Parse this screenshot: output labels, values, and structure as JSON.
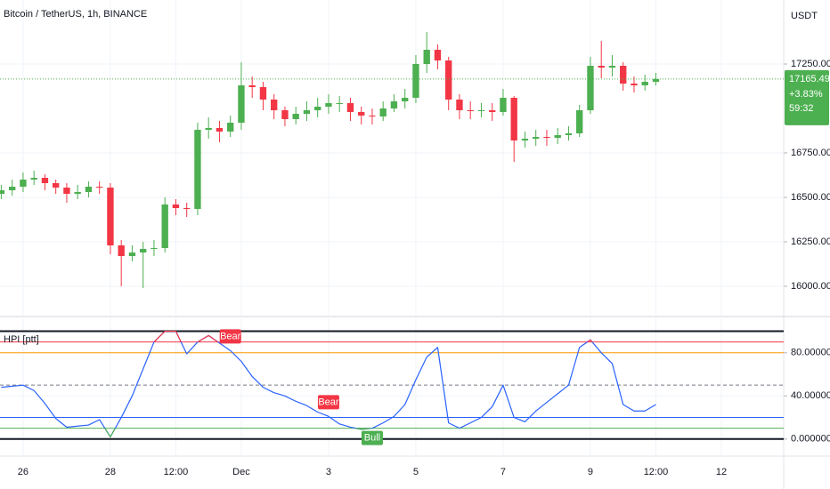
{
  "chart_data": [
    {
      "type": "candlestick",
      "title": "Bitcoin / TetherUS, 1h, BINANCE",
      "unit": "USDT",
      "x": [
        -12,
        -6,
        0,
        6,
        12,
        18,
        24,
        30,
        36,
        42,
        48,
        54,
        60,
        66,
        72,
        78,
        84,
        90,
        96,
        102,
        108,
        114,
        120,
        126,
        132,
        138,
        144,
        150,
        156,
        162,
        168,
        174,
        180,
        186,
        192,
        198,
        204,
        210,
        216,
        222,
        228,
        234,
        240,
        246,
        252,
        258,
        264,
        270,
        276,
        282,
        288,
        294,
        300,
        306,
        312,
        318,
        324,
        330,
        336,
        342,
        348
      ],
      "open": [
        16520,
        16540,
        16560,
        16600,
        16610,
        16580,
        16555,
        16520,
        16530,
        16560,
        16555,
        16230,
        16170,
        16190,
        16210,
        16215,
        16460,
        16440,
        16435,
        16880,
        16890,
        16870,
        16920,
        17130,
        17120,
        17050,
        16990,
        16940,
        16970,
        16990,
        17010,
        17030,
        17030,
        16980,
        16960,
        16955,
        17000,
        17040,
        17060,
        17250,
        17330,
        17270,
        17050,
        16990,
        16985,
        16990,
        16980,
        17060,
        16820,
        16830,
        16840,
        16835,
        16850,
        16860,
        16990,
        17240,
        17230,
        17240,
        17140,
        17130,
        17150
      ],
      "high": [
        16570,
        16600,
        16640,
        16650,
        16630,
        16600,
        16580,
        16570,
        16590,
        16590,
        16580,
        16260,
        16230,
        16250,
        16260,
        16500,
        16490,
        16470,
        16920,
        16950,
        16930,
        16960,
        17260,
        17180,
        17150,
        17080,
        17010,
        17010,
        17040,
        17060,
        17080,
        17070,
        17060,
        17010,
        17000,
        17040,
        17080,
        17110,
        17300,
        17430,
        17360,
        17290,
        17080,
        17040,
        17030,
        17030,
        17110,
        17070,
        16870,
        16880,
        16880,
        16890,
        16900,
        17020,
        17290,
        17380,
        17300,
        17260,
        17180,
        17190,
        17200
      ],
      "low": [
        16490,
        16510,
        16530,
        16570,
        16540,
        16520,
        16470,
        16490,
        16500,
        16520,
        16180,
        16000,
        16140,
        15990,
        16170,
        16190,
        16400,
        16390,
        16400,
        16830,
        16810,
        16840,
        16880,
        17060,
        16990,
        16940,
        16900,
        16910,
        16930,
        16950,
        16970,
        16980,
        16930,
        16910,
        16910,
        16930,
        16980,
        17000,
        17030,
        17200,
        17220,
        16990,
        16940,
        16940,
        16950,
        16930,
        16960,
        16700,
        16780,
        16790,
        16790,
        16800,
        16820,
        16840,
        16970,
        17170,
        17180,
        17100,
        17090,
        17100,
        17130
      ],
      "close": [
        16540,
        16560,
        16600,
        16610,
        16580,
        16555,
        16520,
        16530,
        16560,
        16555,
        16230,
        16170,
        16190,
        16210,
        16215,
        16460,
        16440,
        16435,
        16880,
        16890,
        16870,
        16920,
        17130,
        17120,
        17050,
        16990,
        16940,
        16970,
        16990,
        17010,
        17030,
        17030,
        16980,
        16960,
        16955,
        17000,
        17040,
        17060,
        17250,
        17330,
        17270,
        17050,
        16990,
        16985,
        16990,
        16980,
        17060,
        16820,
        16830,
        16840,
        16835,
        16850,
        16860,
        16990,
        17240,
        17230,
        17240,
        17140,
        17130,
        17150,
        17165
      ],
      "up_color": "#4caf50",
      "down_color": "#f23645",
      "last_price": 17165.49,
      "change_label": "+3.83%",
      "countdown": "59:32",
      "last_price_color": "#4caf50",
      "xlim": [
        -12.7,
        418.3
      ],
      "xticks": [
        {
          "value": 0,
          "label": "26"
        },
        {
          "value": 48,
          "label": "28"
        },
        {
          "value": 84,
          "label": "12:00"
        },
        {
          "value": 120,
          "label": "Dec"
        },
        {
          "value": 168,
          "label": "3"
        },
        {
          "value": 216,
          "label": "5"
        },
        {
          "value": 264,
          "label": "7"
        },
        {
          "value": 312,
          "label": "9"
        },
        {
          "value": 348,
          "label": "12:00"
        },
        {
          "value": 384,
          "label": "12"
        }
      ],
      "ylim": [
        15835,
        17610
      ],
      "yticks": [
        {
          "value": 16000,
          "label": "16000.00"
        },
        {
          "value": 16250,
          "label": "16250.00"
        },
        {
          "value": 16500,
          "label": "16500.00"
        },
        {
          "value": 16750,
          "label": "16750.00"
        },
        {
          "value": 17250,
          "label": "17250.00"
        }
      ],
      "grid": true
    },
    {
      "type": "line",
      "title": "HPI [ptt]",
      "x": [
        -12,
        -6,
        0,
        6,
        12,
        18,
        24,
        30,
        36,
        42,
        48,
        54,
        60,
        66,
        72,
        78,
        84,
        90,
        96,
        102,
        108,
        114,
        120,
        126,
        132,
        138,
        144,
        150,
        156,
        162,
        168,
        174,
        180,
        186,
        192,
        198,
        204,
        210,
        216,
        222,
        228,
        234,
        240,
        246,
        252,
        258,
        264,
        270,
        276,
        282,
        288,
        294,
        300,
        306,
        312,
        318,
        324,
        330,
        336,
        342,
        348
      ],
      "values": [
        48,
        49,
        50,
        45,
        33,
        19,
        11,
        12,
        13,
        18,
        2,
        20,
        40,
        65,
        90,
        100,
        100,
        79,
        90,
        96,
        89,
        82,
        72,
        58,
        48,
        43,
        40,
        35,
        31,
        25,
        21,
        14,
        11,
        9,
        10,
        15,
        21,
        32,
        55,
        76,
        85,
        15,
        10,
        15,
        20,
        30,
        50,
        20,
        16,
        26,
        34,
        42,
        50,
        85,
        92,
        80,
        70,
        32,
        26,
        26,
        32
      ],
      "color": "#2962ff",
      "overbought_color": "#f23645",
      "oversold_color": "#4caf50",
      "levels": [
        {
          "value": 100,
          "color": "#131722",
          "width": 2
        },
        {
          "value": 90,
          "color": "#f23645",
          "width": 1
        },
        {
          "value": 80,
          "color": "#ff9800",
          "width": 1
        },
        {
          "value": 50,
          "color": "#787b86",
          "width": 1,
          "dashed": true
        },
        {
          "value": 20,
          "color": "#2962ff",
          "width": 1
        },
        {
          "value": 10,
          "color": "#4caf50",
          "width": 1
        },
        {
          "value": 0,
          "color": "#131722",
          "width": 2
        }
      ],
      "signals": [
        {
          "label": "Bear",
          "x": 114,
          "color": "#f23645",
          "position": "above"
        },
        {
          "label": "Bear",
          "x": 168,
          "color": "#f23645",
          "position": "above"
        },
        {
          "label": "Bull",
          "x": 192,
          "color": "#4caf50",
          "position": "below"
        }
      ],
      "ylim": [
        -15,
        112
      ],
      "yticks": [
        {
          "value": 0,
          "label": "0.000000"
        },
        {
          "value": 40,
          "label": "40.000000"
        },
        {
          "value": 80,
          "label": "80.000000"
        }
      ],
      "grid": true
    }
  ]
}
